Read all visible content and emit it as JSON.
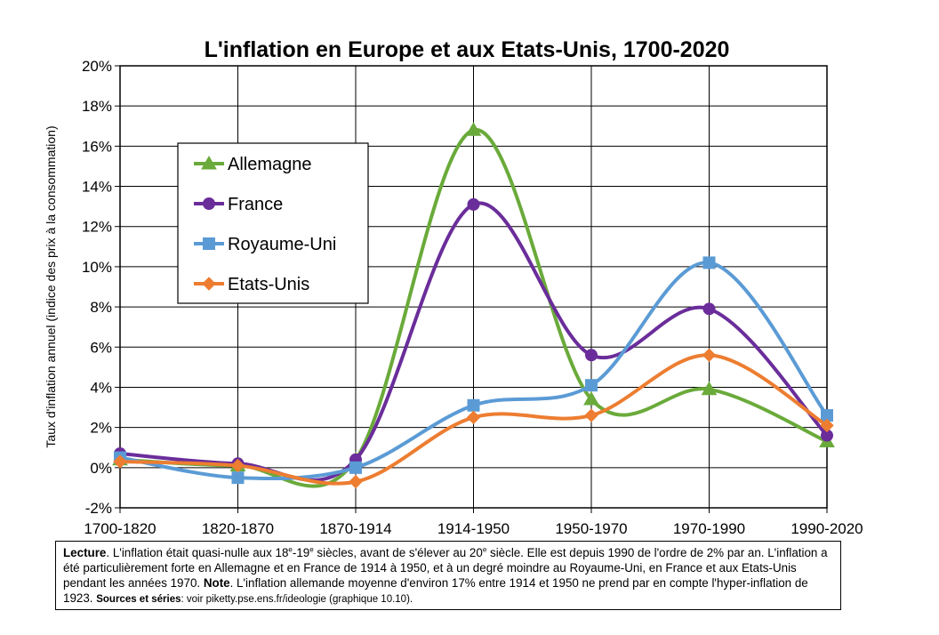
{
  "chart_data": {
    "type": "line",
    "title": "L'inflation en Europe et aux Etats-Unis, 1700-2020",
    "ylabel": "Taux d'inflation annuel (indice des prix à la consommation)",
    "xlabel": "",
    "categories": [
      "1700-1820",
      "1820-1870",
      "1870-1914",
      "1914-1950",
      "1950-1970",
      "1970-1990",
      "1990-2020"
    ],
    "ylim": [
      -2,
      20
    ],
    "yticks": [
      -2,
      0,
      2,
      4,
      6,
      8,
      10,
      12,
      14,
      16,
      18,
      20
    ],
    "ytick_labels": [
      "-2%",
      "0%",
      "2%",
      "4%",
      "6%",
      "8%",
      "10%",
      "12%",
      "14%",
      "16%",
      "18%",
      "20%"
    ],
    "grid": true,
    "legend_position": "upper-left",
    "series": [
      {
        "name": "Allemagne",
        "color": "#6aaa3a",
        "marker": "triangle",
        "values": [
          0.4,
          0.1,
          0.4,
          16.8,
          3.4,
          3.9,
          1.3
        ]
      },
      {
        "name": "France",
        "color": "#6a2d9a",
        "marker": "circle",
        "values": [
          0.7,
          0.2,
          0.4,
          13.1,
          5.6,
          7.9,
          1.6
        ]
      },
      {
        "name": "Royaume-Uni",
        "color": "#5b9bd5",
        "marker": "square",
        "values": [
          0.5,
          -0.5,
          0.0,
          3.1,
          4.1,
          10.2,
          2.6
        ]
      },
      {
        "name": "Etats-Unis",
        "color": "#ed7d31",
        "marker": "diamond",
        "values": [
          0.3,
          0.1,
          -0.7,
          2.5,
          2.6,
          5.6,
          2.1
        ]
      }
    ]
  },
  "note": {
    "lecture_label": "Lecture",
    "text1": ". L'inflation était quasi-nulle aux 18",
    "sup1": "e",
    "text2": "-19",
    "sup2": "e",
    "text3": " siècles, avant de s'élever au 20",
    "sup3": "e",
    "text4": " siècle. Elle est depuis 1990 de l'ordre de 2% par an. L'inflation a été particulièrement forte en Allemagne et en France de 1914 à 1950, et à un degré moindre au Royaume-Uni, en France et aux Etats-Unis pendant les années 1970. ",
    "note_label": "Note",
    "text5": ". L'inflation allemande moyenne d'environ 17% entre 1914 et 1950 ne prend par en compte l'hyper-inflation de 1923.  ",
    "sources_label": "Sources et séries",
    "sources_text": ": voir piketty.pse.ens.fr/ideologie (graphique 10.10)."
  }
}
